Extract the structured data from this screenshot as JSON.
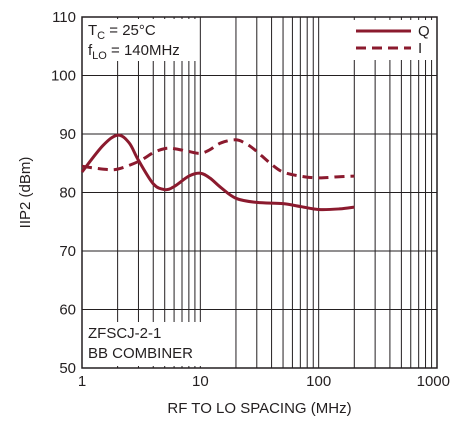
{
  "chart_data": {
    "type": "line",
    "xlabel": "RF TO LO SPACING (MHz)",
    "ylabel": "IIP2 (dBm)",
    "xscale": "log",
    "xlim": [
      1,
      1000
    ],
    "ylim": [
      50,
      110
    ],
    "x_ticks": [
      "1",
      "10",
      "100",
      "1000"
    ],
    "y_ticks": [
      "50",
      "60",
      "70",
      "80",
      "90",
      "100",
      "110"
    ],
    "grid": true,
    "legend": {
      "placement": "top-right",
      "entries": [
        "Q",
        "I"
      ]
    },
    "conditions": {
      "tc_symbol": "T",
      "tc_sub": "C",
      "tc_value": " = 25°C",
      "flo_symbol": "f",
      "flo_sub": "LO",
      "flo_value": " = 140MHz"
    },
    "annotation": [
      "ZFSCJ-2-1",
      "BB COMBINER"
    ],
    "series": [
      {
        "name": "Q",
        "style": "solid",
        "color": "#8b1a2e",
        "x": [
          1,
          1.5,
          2,
          2.5,
          3,
          4,
          5,
          6,
          8,
          10,
          12,
          15,
          20,
          30,
          50,
          70,
          100,
          150,
          200
        ],
        "y": [
          83.5,
          88.0,
          89.8,
          88.5,
          85.5,
          81.5,
          80.5,
          81.0,
          82.8,
          83.3,
          82.5,
          80.8,
          79.0,
          78.3,
          78.1,
          77.6,
          77.1,
          77.2,
          77.5
        ]
      },
      {
        "name": "I",
        "style": "dashed",
        "color": "#8b1a2e",
        "x": [
          1,
          1.5,
          2,
          3,
          4,
          5,
          6,
          8,
          10,
          12,
          15,
          20,
          25,
          30,
          40,
          50,
          70,
          100,
          150,
          200
        ],
        "y": [
          84.5,
          84.0,
          84.0,
          85.3,
          86.8,
          87.5,
          87.5,
          87.0,
          86.7,
          87.3,
          88.5,
          89.0,
          88.2,
          87.0,
          84.8,
          83.5,
          82.8,
          82.5,
          82.7,
          82.8
        ]
      }
    ]
  }
}
